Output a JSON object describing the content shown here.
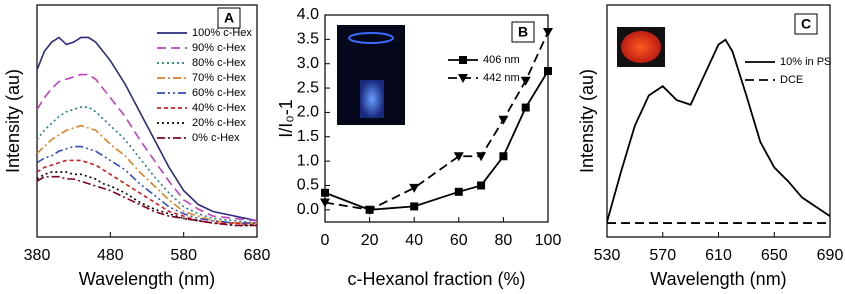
{
  "chart_data": [
    {
      "type": "line",
      "panel_label": "A",
      "xlabel": "Wavelength (nm)",
      "ylabel": "Intensity (au)",
      "xlim": [
        380,
        680
      ],
      "xticks": [
        380,
        480,
        580,
        680
      ],
      "ylim": [
        0,
        100
      ],
      "legend": "upper right",
      "x": [
        380,
        390,
        400,
        410,
        420,
        430,
        440,
        450,
        460,
        470,
        480,
        500,
        520,
        540,
        560,
        580,
        600,
        620,
        650,
        680
      ],
      "series": [
        {
          "name": "100% c-Hex",
          "color": "#2b2b7f",
          "dash": "solid",
          "values": [
            72,
            80,
            84,
            86,
            83,
            84,
            86,
            86,
            84,
            80,
            76,
            66,
            54,
            42,
            30,
            20,
            14,
            11,
            9,
            7
          ]
        },
        {
          "name": "90% c-Hex",
          "color": "#c040c0",
          "dash": "dash",
          "values": [
            55,
            60,
            64,
            67,
            68,
            69,
            70,
            70,
            68,
            64,
            60,
            52,
            42,
            33,
            24,
            16,
            12,
            9,
            8,
            7
          ]
        },
        {
          "name": "80% c-Hex",
          "color": "#208080",
          "dash": "dot",
          "values": [
            42,
            46,
            49,
            52,
            54,
            55,
            56,
            56,
            54,
            51,
            48,
            42,
            34,
            26,
            19,
            13,
            10,
            8,
            7,
            6
          ]
        },
        {
          "name": "70% c-Hex",
          "color": "#e08020",
          "dash": "dashdot",
          "values": [
            36,
            39,
            42,
            44,
            46,
            47,
            48,
            47,
            46,
            43,
            40,
            35,
            28,
            22,
            16,
            11,
            9,
            7,
            6,
            6
          ]
        },
        {
          "name": "60% c-Hex",
          "color": "#3050c0",
          "dash": "dashdotdot",
          "values": [
            32,
            34,
            35,
            37,
            38,
            39,
            39,
            38,
            37,
            35,
            33,
            29,
            23,
            18,
            13,
            10,
            8,
            7,
            6,
            6
          ]
        },
        {
          "name": "40% c-Hex",
          "color": "#d02020",
          "dash": "shortdash",
          "values": [
            28,
            30,
            31,
            32,
            33,
            33,
            33,
            32,
            31,
            29,
            27,
            23,
            19,
            15,
            11,
            9,
            7,
            6,
            6,
            5
          ]
        },
        {
          "name": "20% c-Hex",
          "color": "#000000",
          "dash": "dot",
          "values": [
            25,
            27,
            28,
            28,
            28,
            27,
            27,
            26,
            25,
            23,
            22,
            19,
            15,
            12,
            10,
            8,
            7,
            6,
            5,
            5
          ]
        },
        {
          "name": "0% c-Hex",
          "color": "#800020",
          "dash": "dashdot",
          "values": [
            24,
            26,
            26,
            26,
            25,
            25,
            24,
            23,
            22,
            21,
            20,
            17,
            14,
            11,
            9,
            8,
            7,
            6,
            5,
            5
          ]
        }
      ]
    },
    {
      "type": "line",
      "panel_label": "B",
      "xlabel": "c-Hexanol fraction (%)",
      "ylabel": "I/I₀-1",
      "xlim": [
        0,
        100
      ],
      "xticks": [
        0,
        20,
        40,
        60,
        80,
        100
      ],
      "ylim": [
        -0.25,
        4
      ],
      "yticks": [
        {
          "value": 0,
          "label": "0.0"
        },
        {
          "value": 0.5,
          "label": "0.5"
        },
        {
          "value": 1,
          "label": "1.0"
        },
        {
          "value": 1.5,
          "label": "1.5"
        },
        {
          "value": 2,
          "label": "2.0"
        },
        {
          "value": 2.5,
          "label": "2.5"
        },
        {
          "value": 3,
          "label": "3.0"
        },
        {
          "value": 3.5,
          "label": "3.5"
        },
        {
          "value": 4,
          "label": "4.0"
        }
      ],
      "legend": "center right",
      "x": [
        0,
        20,
        40,
        60,
        70,
        80,
        90,
        100
      ],
      "series": [
        {
          "name": "406 nm",
          "color": "#000000",
          "dash": "solid",
          "marker": "square",
          "values": [
            0.35,
            0.0,
            0.07,
            0.37,
            0.5,
            1.1,
            2.1,
            2.85
          ]
        },
        {
          "name": "442 nm",
          "color": "#000000",
          "dash": "dash",
          "marker": "triangle-down",
          "values": [
            0.15,
            0.0,
            0.45,
            1.1,
            1.1,
            1.85,
            2.65,
            3.65
          ]
        }
      ]
    },
    {
      "type": "line",
      "panel_label": "C",
      "xlabel": "Wavelength (nm)",
      "ylabel": "Intensity (au)",
      "xlim": [
        530,
        690
      ],
      "xticks": [
        530,
        570,
        610,
        650,
        690
      ],
      "ylim": [
        0,
        100
      ],
      "legend": "upper right",
      "x": [
        530,
        540,
        550,
        560,
        570,
        580,
        590,
        600,
        610,
        615,
        620,
        630,
        640,
        650,
        660,
        670,
        680,
        690
      ],
      "series": [
        {
          "name": "10% in PS",
          "color": "#000000",
          "dash": "solid",
          "values": [
            6.5,
            28,
            48,
            61,
            65,
            59,
            57,
            70,
            83,
            85,
            80,
            61,
            41,
            30,
            24,
            17,
            13,
            9
          ]
        },
        {
          "name": "DCE",
          "color": "#000000",
          "dash": "dash",
          "values": [
            6,
            6,
            6,
            6,
            6,
            6,
            6,
            6,
            6,
            6,
            6,
            6,
            6,
            6,
            6,
            6,
            6,
            6
          ]
        }
      ]
    }
  ]
}
